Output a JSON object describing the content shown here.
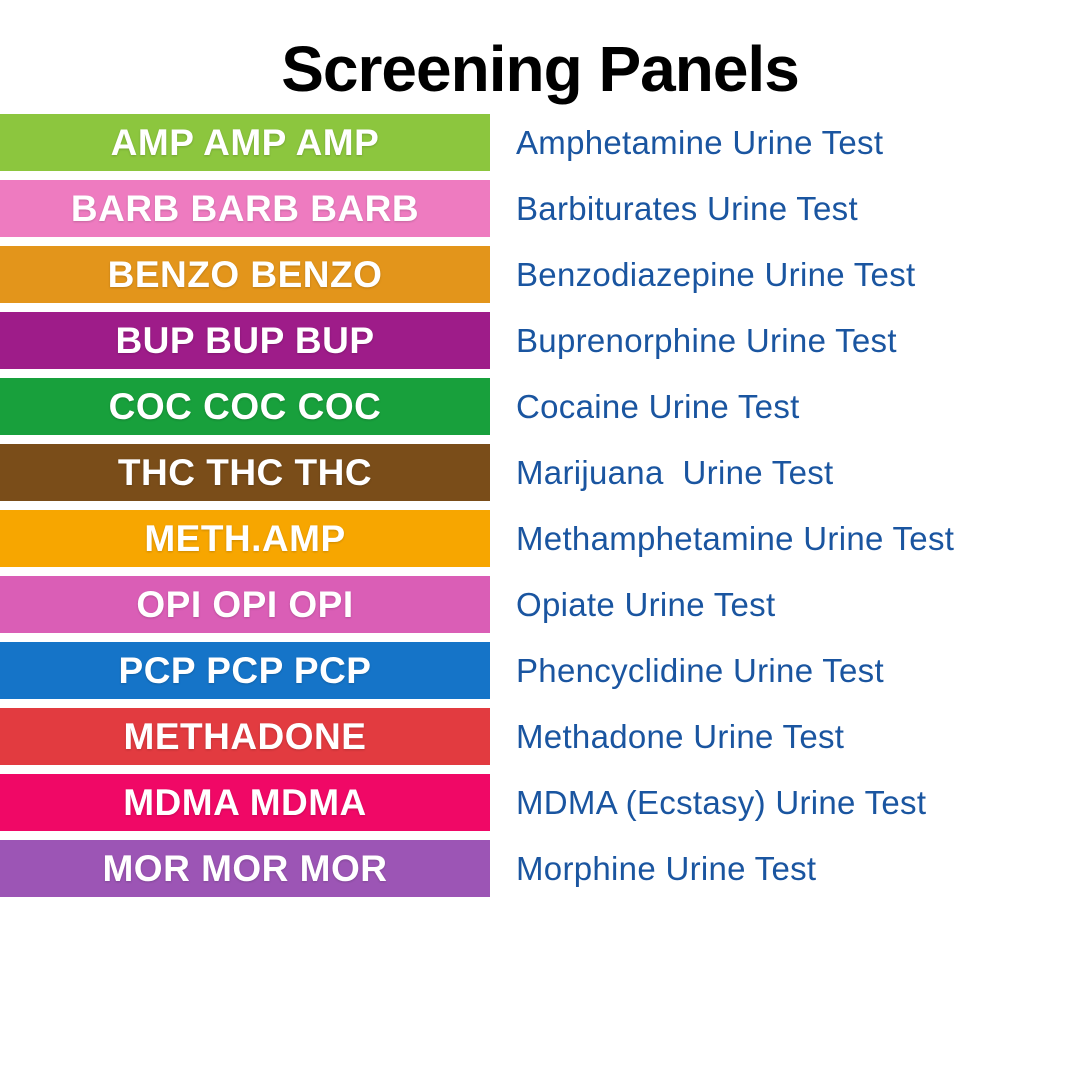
{
  "title": "Screening Panels",
  "colors": {
    "background": "#FFFFFF",
    "title_text": "#000000",
    "band_text": "#FFFFFF",
    "test_name_text": "#1A55A0"
  },
  "panels": [
    {
      "code": "AMP AMP AMP",
      "name": "Amphetamine Urine Test",
      "color": "#8CC63E"
    },
    {
      "code": "BARB BARB BARB",
      "name": "Barbiturates Urine Test",
      "color": "#EE7BC0"
    },
    {
      "code": "BENZO BENZO",
      "name": "Benzodiazepine Urine Test",
      "color": "#E3951B"
    },
    {
      "code": "BUP BUP BUP",
      "name": "Buprenorphine Urine Test",
      "color": "#9E1C89"
    },
    {
      "code": "COC COC COC",
      "name": "Cocaine Urine Test",
      "color": "#18A03C"
    },
    {
      "code": "THC THC THC",
      "name": "Marijuana  Urine Test",
      "color": "#7A4D19"
    },
    {
      "code": "METH.AMP",
      "name": "Methamphetamine Urine Test",
      "color": "#F7A600"
    },
    {
      "code": "OPI OPI OPI",
      "name": "Opiate Urine Test",
      "color": "#DA5EB6"
    },
    {
      "code": "PCP PCP PCP",
      "name": "Phencyclidine Urine Test",
      "color": "#1574C8"
    },
    {
      "code": "METHADONE",
      "name": "Methadone Urine Test",
      "color": "#E23B40"
    },
    {
      "code": "MDMA MDMA",
      "name": "MDMA (Ecstasy) Urine Test",
      "color": "#F00866"
    },
    {
      "code": "MOR MOR MOR",
      "name": "Morphine Urine Test",
      "color": "#9C55B5"
    }
  ]
}
